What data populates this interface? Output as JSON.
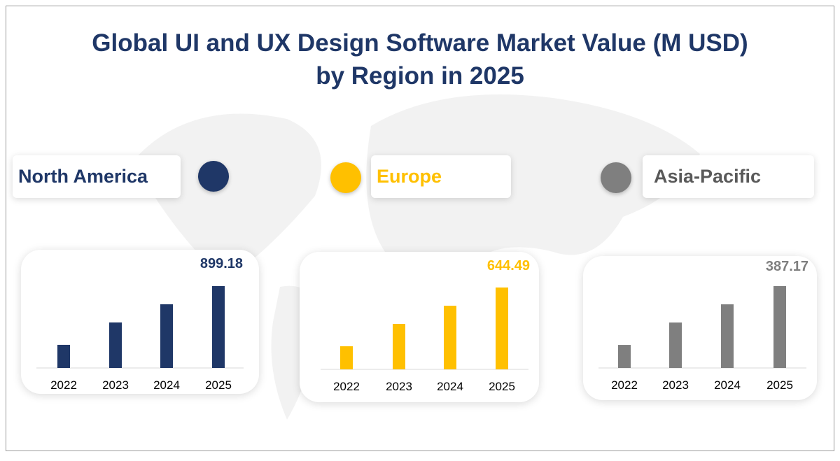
{
  "title_line1": "Global UI and UX Design Software Market Value (M USD)",
  "title_line2": "by Region in 2025",
  "chart_data": [
    {
      "type": "bar",
      "series_name": "North America",
      "color": "#1f3767",
      "categories": [
        "2022",
        "2023",
        "2024",
        "2025"
      ],
      "values": [
        254,
        500,
        700,
        899.18
      ],
      "data_label": "899.18"
    },
    {
      "type": "bar",
      "series_name": "Europe",
      "color": "#ffc000",
      "categories": [
        "2022",
        "2023",
        "2024",
        "2025"
      ],
      "values": [
        182,
        358,
        501,
        644.49
      ],
      "data_label": "644.49"
    },
    {
      "type": "bar",
      "series_name": "Asia-Pacific",
      "color": "#7f7f7f",
      "categories": [
        "2022",
        "2023",
        "2024",
        "2025"
      ],
      "values": [
        109,
        215,
        301,
        387.17
      ],
      "data_label": "387.17"
    }
  ]
}
